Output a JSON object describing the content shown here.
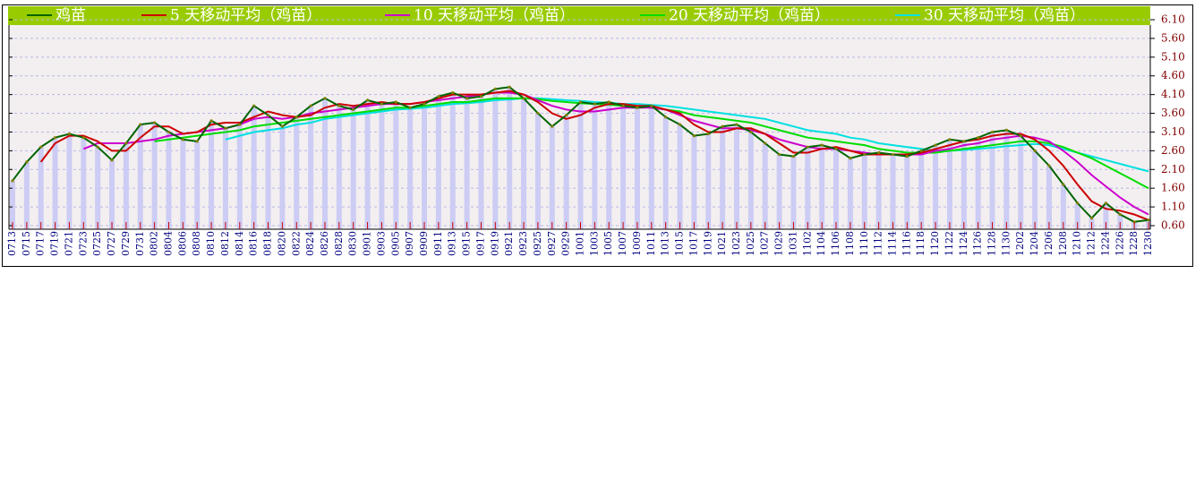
{
  "chart_data": {
    "type": "line",
    "categories": [
      "0713",
      "0715",
      "0717",
      "0719",
      "0721",
      "0723",
      "0725",
      "0727",
      "0729",
      "0731",
      "0802",
      "0804",
      "0806",
      "0808",
      "0810",
      "0812",
      "0814",
      "0816",
      "0818",
      "0820",
      "0822",
      "0824",
      "0826",
      "0828",
      "0830",
      "0901",
      "0903",
      "0905",
      "0907",
      "0909",
      "0911",
      "0913",
      "0915",
      "0917",
      "0919",
      "0921",
      "0923",
      "0925",
      "0927",
      "0929",
      "1001",
      "1003",
      "1005",
      "1007",
      "1009",
      "1011",
      "1013",
      "1015",
      "1017",
      "1019",
      "1021",
      "1023",
      "1025",
      "1027",
      "1029",
      "1031",
      "1102",
      "1104",
      "1106",
      "1108",
      "1110",
      "1112",
      "1114",
      "1116",
      "1118",
      "1120",
      "1122",
      "1124",
      "1126",
      "1128",
      "1130",
      "1202",
      "1204",
      "1206",
      "1208",
      "1210",
      "1212",
      "1224",
      "1226",
      "1228",
      "1230"
    ],
    "series": [
      {
        "name": "鸡苗",
        "color": "#006400",
        "values": [
          1.8,
          2.3,
          2.7,
          2.95,
          3.05,
          2.95,
          2.7,
          2.35,
          2.8,
          3.3,
          3.35,
          3.1,
          2.9,
          2.85,
          3.4,
          3.2,
          3.3,
          3.8,
          3.55,
          3.25,
          3.5,
          3.8,
          4.0,
          3.8,
          3.7,
          3.95,
          3.85,
          3.9,
          3.75,
          3.85,
          4.05,
          4.15,
          4.0,
          4.05,
          4.25,
          4.3,
          4.0,
          3.6,
          3.25,
          3.55,
          3.9,
          3.85,
          3.9,
          3.8,
          3.75,
          3.8,
          3.5,
          3.3,
          3.0,
          3.05,
          3.25,
          3.3,
          3.1,
          2.8,
          2.5,
          2.45,
          2.7,
          2.75,
          2.65,
          2.4,
          2.5,
          2.55,
          2.5,
          2.45,
          2.6,
          2.75,
          2.9,
          2.85,
          2.95,
          3.1,
          3.15,
          3.0,
          2.6,
          2.2,
          1.7,
          1.2,
          0.8,
          1.2,
          0.9,
          0.7,
          0.75
        ]
      },
      {
        "name": "5 天移动平均（鸡苗）",
        "color": "#cc0000",
        "values": [
          null,
          null,
          2.3,
          2.8,
          3.0,
          3.0,
          2.85,
          2.6,
          2.6,
          2.95,
          3.25,
          3.25,
          3.05,
          3.1,
          3.3,
          3.35,
          3.35,
          3.5,
          3.65,
          3.55,
          3.5,
          3.55,
          3.75,
          3.85,
          3.8,
          3.85,
          3.9,
          3.85,
          3.85,
          3.9,
          4.0,
          4.1,
          4.1,
          4.1,
          4.15,
          4.2,
          4.1,
          3.9,
          3.6,
          3.45,
          3.55,
          3.75,
          3.85,
          3.85,
          3.8,
          3.8,
          3.7,
          3.6,
          3.3,
          3.1,
          3.1,
          3.2,
          3.2,
          3.05,
          2.8,
          2.55,
          2.55,
          2.65,
          2.7,
          2.6,
          2.5,
          2.5,
          2.5,
          2.5,
          2.55,
          2.65,
          2.75,
          2.85,
          2.9,
          3.0,
          3.05,
          3.05,
          2.9,
          2.6,
          2.2,
          1.7,
          1.25,
          1.05,
          1.0,
          0.9,
          0.75
        ]
      },
      {
        "name": "10 天移动平均（鸡苗）",
        "color": "#cc00cc",
        "values": [
          null,
          null,
          null,
          null,
          null,
          2.65,
          2.8,
          2.8,
          2.8,
          2.85,
          2.9,
          3.0,
          3.05,
          3.1,
          3.15,
          3.2,
          3.3,
          3.45,
          3.5,
          3.45,
          3.5,
          3.6,
          3.65,
          3.7,
          3.75,
          3.8,
          3.85,
          3.85,
          3.85,
          3.9,
          3.95,
          4.0,
          4.05,
          4.1,
          4.15,
          4.15,
          4.1,
          3.95,
          3.8,
          3.7,
          3.65,
          3.65,
          3.7,
          3.75,
          3.75,
          3.75,
          3.7,
          3.55,
          3.4,
          3.3,
          3.2,
          3.2,
          3.15,
          3.05,
          2.9,
          2.8,
          2.7,
          2.65,
          2.65,
          2.6,
          2.55,
          2.5,
          2.5,
          2.5,
          2.5,
          2.6,
          2.65,
          2.75,
          2.8,
          2.9,
          2.95,
          3.0,
          2.95,
          2.85,
          2.6,
          2.3,
          1.95,
          1.65,
          1.35,
          1.1,
          0.9
        ]
      },
      {
        "name": "20 天移动平均（鸡苗）",
        "color": "#00dd00",
        "values": [
          null,
          null,
          null,
          null,
          null,
          null,
          null,
          null,
          null,
          null,
          2.85,
          2.9,
          2.95,
          3.0,
          3.05,
          3.1,
          3.15,
          3.25,
          3.3,
          3.35,
          3.4,
          3.45,
          3.5,
          3.55,
          3.6,
          3.65,
          3.7,
          3.75,
          3.75,
          3.8,
          3.85,
          3.9,
          3.9,
          3.95,
          4.0,
          4.0,
          4.0,
          3.98,
          3.93,
          3.9,
          3.87,
          3.85,
          3.83,
          3.8,
          3.77,
          3.75,
          3.7,
          3.65,
          3.55,
          3.5,
          3.45,
          3.4,
          3.35,
          3.25,
          3.15,
          3.05,
          2.95,
          2.9,
          2.85,
          2.8,
          2.75,
          2.65,
          2.6,
          2.55,
          2.55,
          2.55,
          2.6,
          2.65,
          2.7,
          2.75,
          2.8,
          2.85,
          2.85,
          2.8,
          2.7,
          2.55,
          2.4,
          2.2,
          2.0,
          1.8,
          1.6
        ]
      },
      {
        "name": "30 天移动平均（鸡苗）",
        "color": "#00e0e0",
        "values": [
          null,
          null,
          null,
          null,
          null,
          null,
          null,
          null,
          null,
          null,
          null,
          null,
          null,
          null,
          null,
          2.9,
          3.0,
          3.1,
          3.15,
          3.2,
          3.3,
          3.35,
          3.45,
          3.5,
          3.55,
          3.6,
          3.65,
          3.7,
          3.72,
          3.75,
          3.8,
          3.85,
          3.87,
          3.9,
          3.95,
          3.97,
          4.0,
          4.0,
          3.98,
          3.95,
          3.93,
          3.9,
          3.88,
          3.85,
          3.85,
          3.82,
          3.8,
          3.75,
          3.7,
          3.65,
          3.6,
          3.55,
          3.5,
          3.45,
          3.35,
          3.25,
          3.15,
          3.1,
          3.05,
          2.95,
          2.9,
          2.8,
          2.75,
          2.7,
          2.65,
          2.6,
          2.6,
          2.62,
          2.65,
          2.68,
          2.72,
          2.75,
          2.78,
          2.75,
          2.65,
          2.55,
          2.45,
          2.35,
          2.25,
          2.15,
          2.05
        ]
      }
    ],
    "ylim": [
      0.6,
      6.1
    ],
    "yticks": [
      {
        "value": 0.6,
        "label": "0.60"
      },
      {
        "value": 1.1,
        "label": "1.10"
      },
      {
        "value": 1.6,
        "label": "1.60"
      },
      {
        "value": 2.1,
        "label": "2.10"
      },
      {
        "value": 2.6,
        "label": "2.60"
      },
      {
        "value": 3.1,
        "label": "3.10"
      },
      {
        "value": 3.6,
        "label": "3.60"
      },
      {
        "value": 4.1,
        "label": "4.10"
      },
      {
        "value": 4.6,
        "label": "4.60"
      },
      {
        "value": 5.1,
        "label": "5.10"
      },
      {
        "value": 5.6,
        "label": "5.60"
      },
      {
        "value": 6.1,
        "label": "6.10"
      }
    ],
    "grid": true,
    "bar_color": "#ccccf4"
  }
}
